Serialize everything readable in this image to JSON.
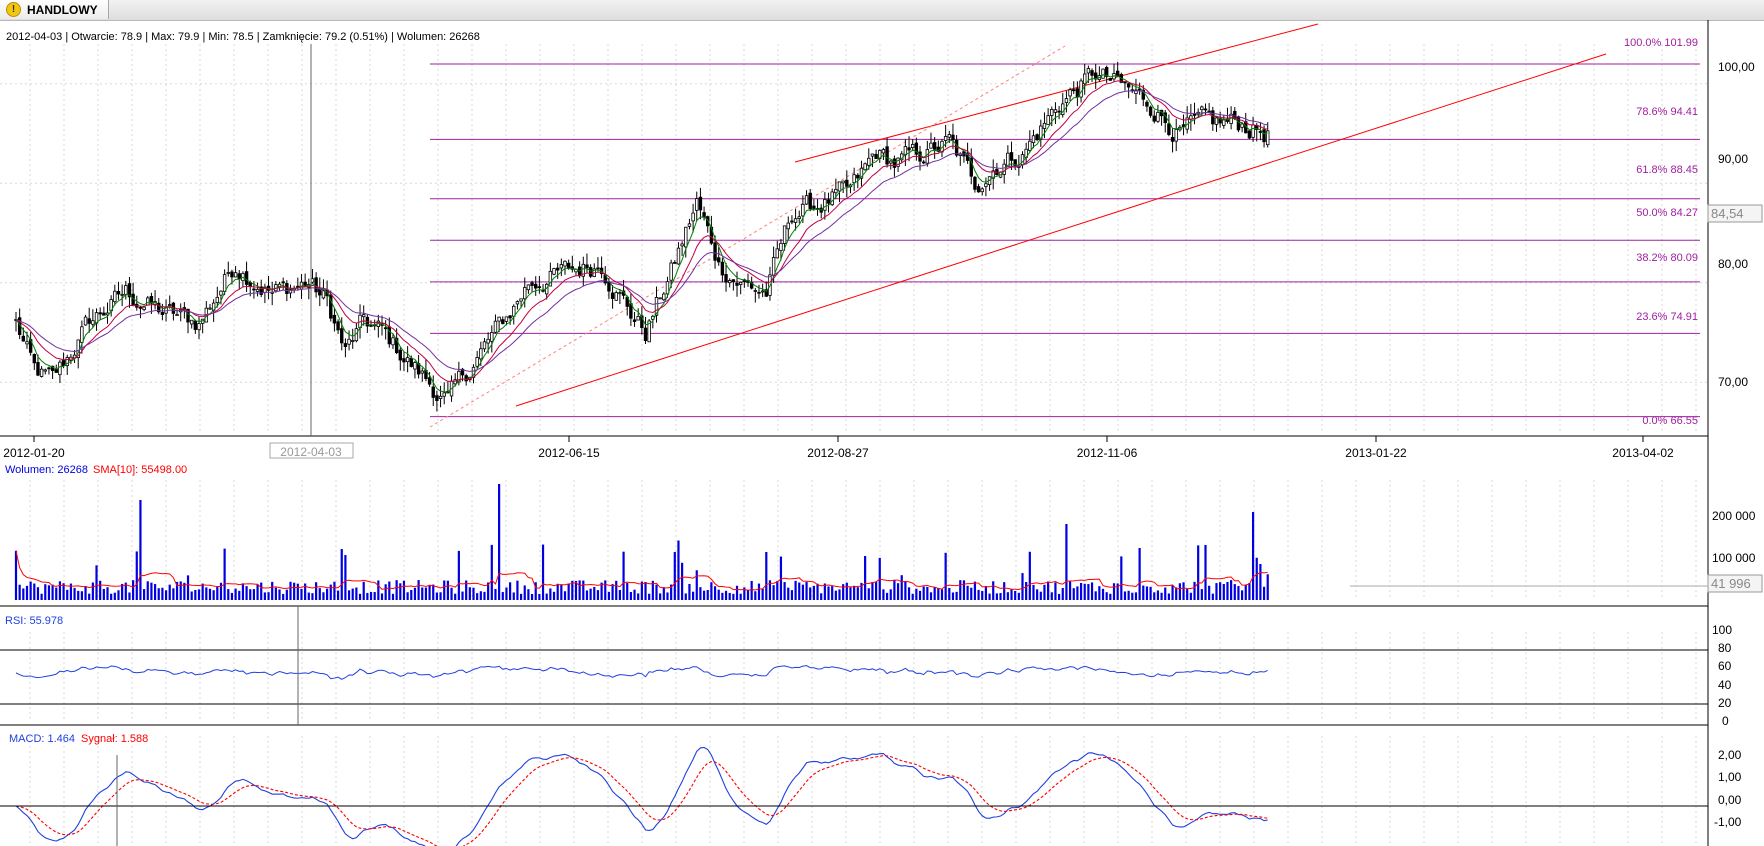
{
  "tab": {
    "label": "HANDLOWY",
    "icon": "warning-icon"
  },
  "ohlc_info": "2012-04-03 | Otwarcie: 78.9 | Max: 79.9 | Min: 78.5 | Zamknięcie: 79.2 (0.51%)  | Wolumen: 26268",
  "cursor_date": "2012-04-03",
  "price_panel": {
    "current_value": "84,54",
    "y_ticks": [
      "100,00",
      "90,00",
      "80,00",
      "70,00"
    ],
    "x_ticks": [
      "2012-01-20",
      "2012-06-15",
      "2012-08-27",
      "2012-11-06",
      "2013-01-22",
      "2013-04-02"
    ]
  },
  "fibonacci": [
    {
      "label": "100.0% 101.99",
      "value": 101.99
    },
    {
      "label": "78.6% 94.41",
      "value": 94.41
    },
    {
      "label": "61.8% 88.45",
      "value": 88.45
    },
    {
      "label": "50.0% 84.27",
      "value": 84.27
    },
    {
      "label": "38.2% 80.09",
      "value": 80.09
    },
    {
      "label": "23.6% 74.91",
      "value": 74.91
    },
    {
      "label": "0.0% 66.55",
      "value": 66.55
    }
  ],
  "volume_panel": {
    "label": "Wolumen: 26268",
    "sma_label": "SMA[10]: 55498.00",
    "current_value": "41 996",
    "y_ticks": [
      "200 000",
      "100 000"
    ]
  },
  "rsi_panel": {
    "label": "RSI: 55.978",
    "y_ticks": [
      "100",
      "80",
      "60",
      "40",
      "20",
      "0"
    ]
  },
  "macd_panel": {
    "label": "MACD: 1.464",
    "signal_label": "Sygnał: 1.588",
    "y_ticks": [
      "2,00",
      "1,00",
      "0,00",
      "-1,00"
    ]
  },
  "colors": {
    "candle": "#000000",
    "fib": "#a020a0",
    "trend": "#ff0000",
    "ema_fast": "#008000",
    "ema_mid": "#c00040",
    "ema_slow": "#7030a0",
    "volume": "#0000e0",
    "sma": "#ff0000",
    "rsi": "#2040e0",
    "macd": "#2040e0",
    "signal": "#ff0000"
  },
  "chart_data": {
    "type": "candlestick",
    "ylim": [
      65,
      104
    ],
    "price_keypoints": [
      [
        0,
        76
      ],
      [
        5,
        71
      ],
      [
        10,
        70
      ],
      [
        20,
        76
      ],
      [
        30,
        79
      ],
      [
        40,
        77
      ],
      [
        50,
        76
      ],
      [
        60,
        82
      ],
      [
        70,
        79
      ],
      [
        80,
        80
      ],
      [
        85,
        78
      ],
      [
        90,
        73
      ],
      [
        95,
        76
      ],
      [
        100,
        75
      ],
      [
        110,
        71
      ],
      [
        118,
        68
      ],
      [
        125,
        72
      ],
      [
        135,
        77
      ],
      [
        140,
        80
      ],
      [
        150,
        81
      ],
      [
        160,
        82
      ],
      [
        168,
        77
      ],
      [
        172,
        75
      ],
      [
        180,
        82
      ],
      [
        186,
        88
      ],
      [
        192,
        82
      ],
      [
        198,
        80
      ],
      [
        205,
        79
      ],
      [
        212,
        87
      ],
      [
        220,
        88
      ],
      [
        228,
        89
      ],
      [
        235,
        93
      ],
      [
        240,
        92
      ],
      [
        248,
        93
      ],
      [
        255,
        94
      ],
      [
        262,
        90
      ],
      [
        268,
        92
      ],
      [
        275,
        93
      ],
      [
        285,
        98
      ],
      [
        295,
        101
      ],
      [
        305,
        99
      ],
      [
        310,
        98
      ],
      [
        318,
        95
      ],
      [
        325,
        96
      ],
      [
        335,
        96
      ],
      [
        342,
        95
      ]
    ],
    "volume_ylim": [
      0,
      300000
    ],
    "volume_spikes": [
      [
        34,
        250000
      ],
      [
        132,
        290000
      ],
      [
        287,
        190000
      ],
      [
        338,
        220000
      ],
      [
        340,
        90000
      ],
      [
        205,
        120000
      ],
      [
        180,
        120000
      ],
      [
        232,
        110000
      ],
      [
        307,
        130000
      ]
    ],
    "rsi_ylim": [
      0,
      100
    ],
    "macd_ylim": [
      -1.6,
      2.8
    ]
  }
}
